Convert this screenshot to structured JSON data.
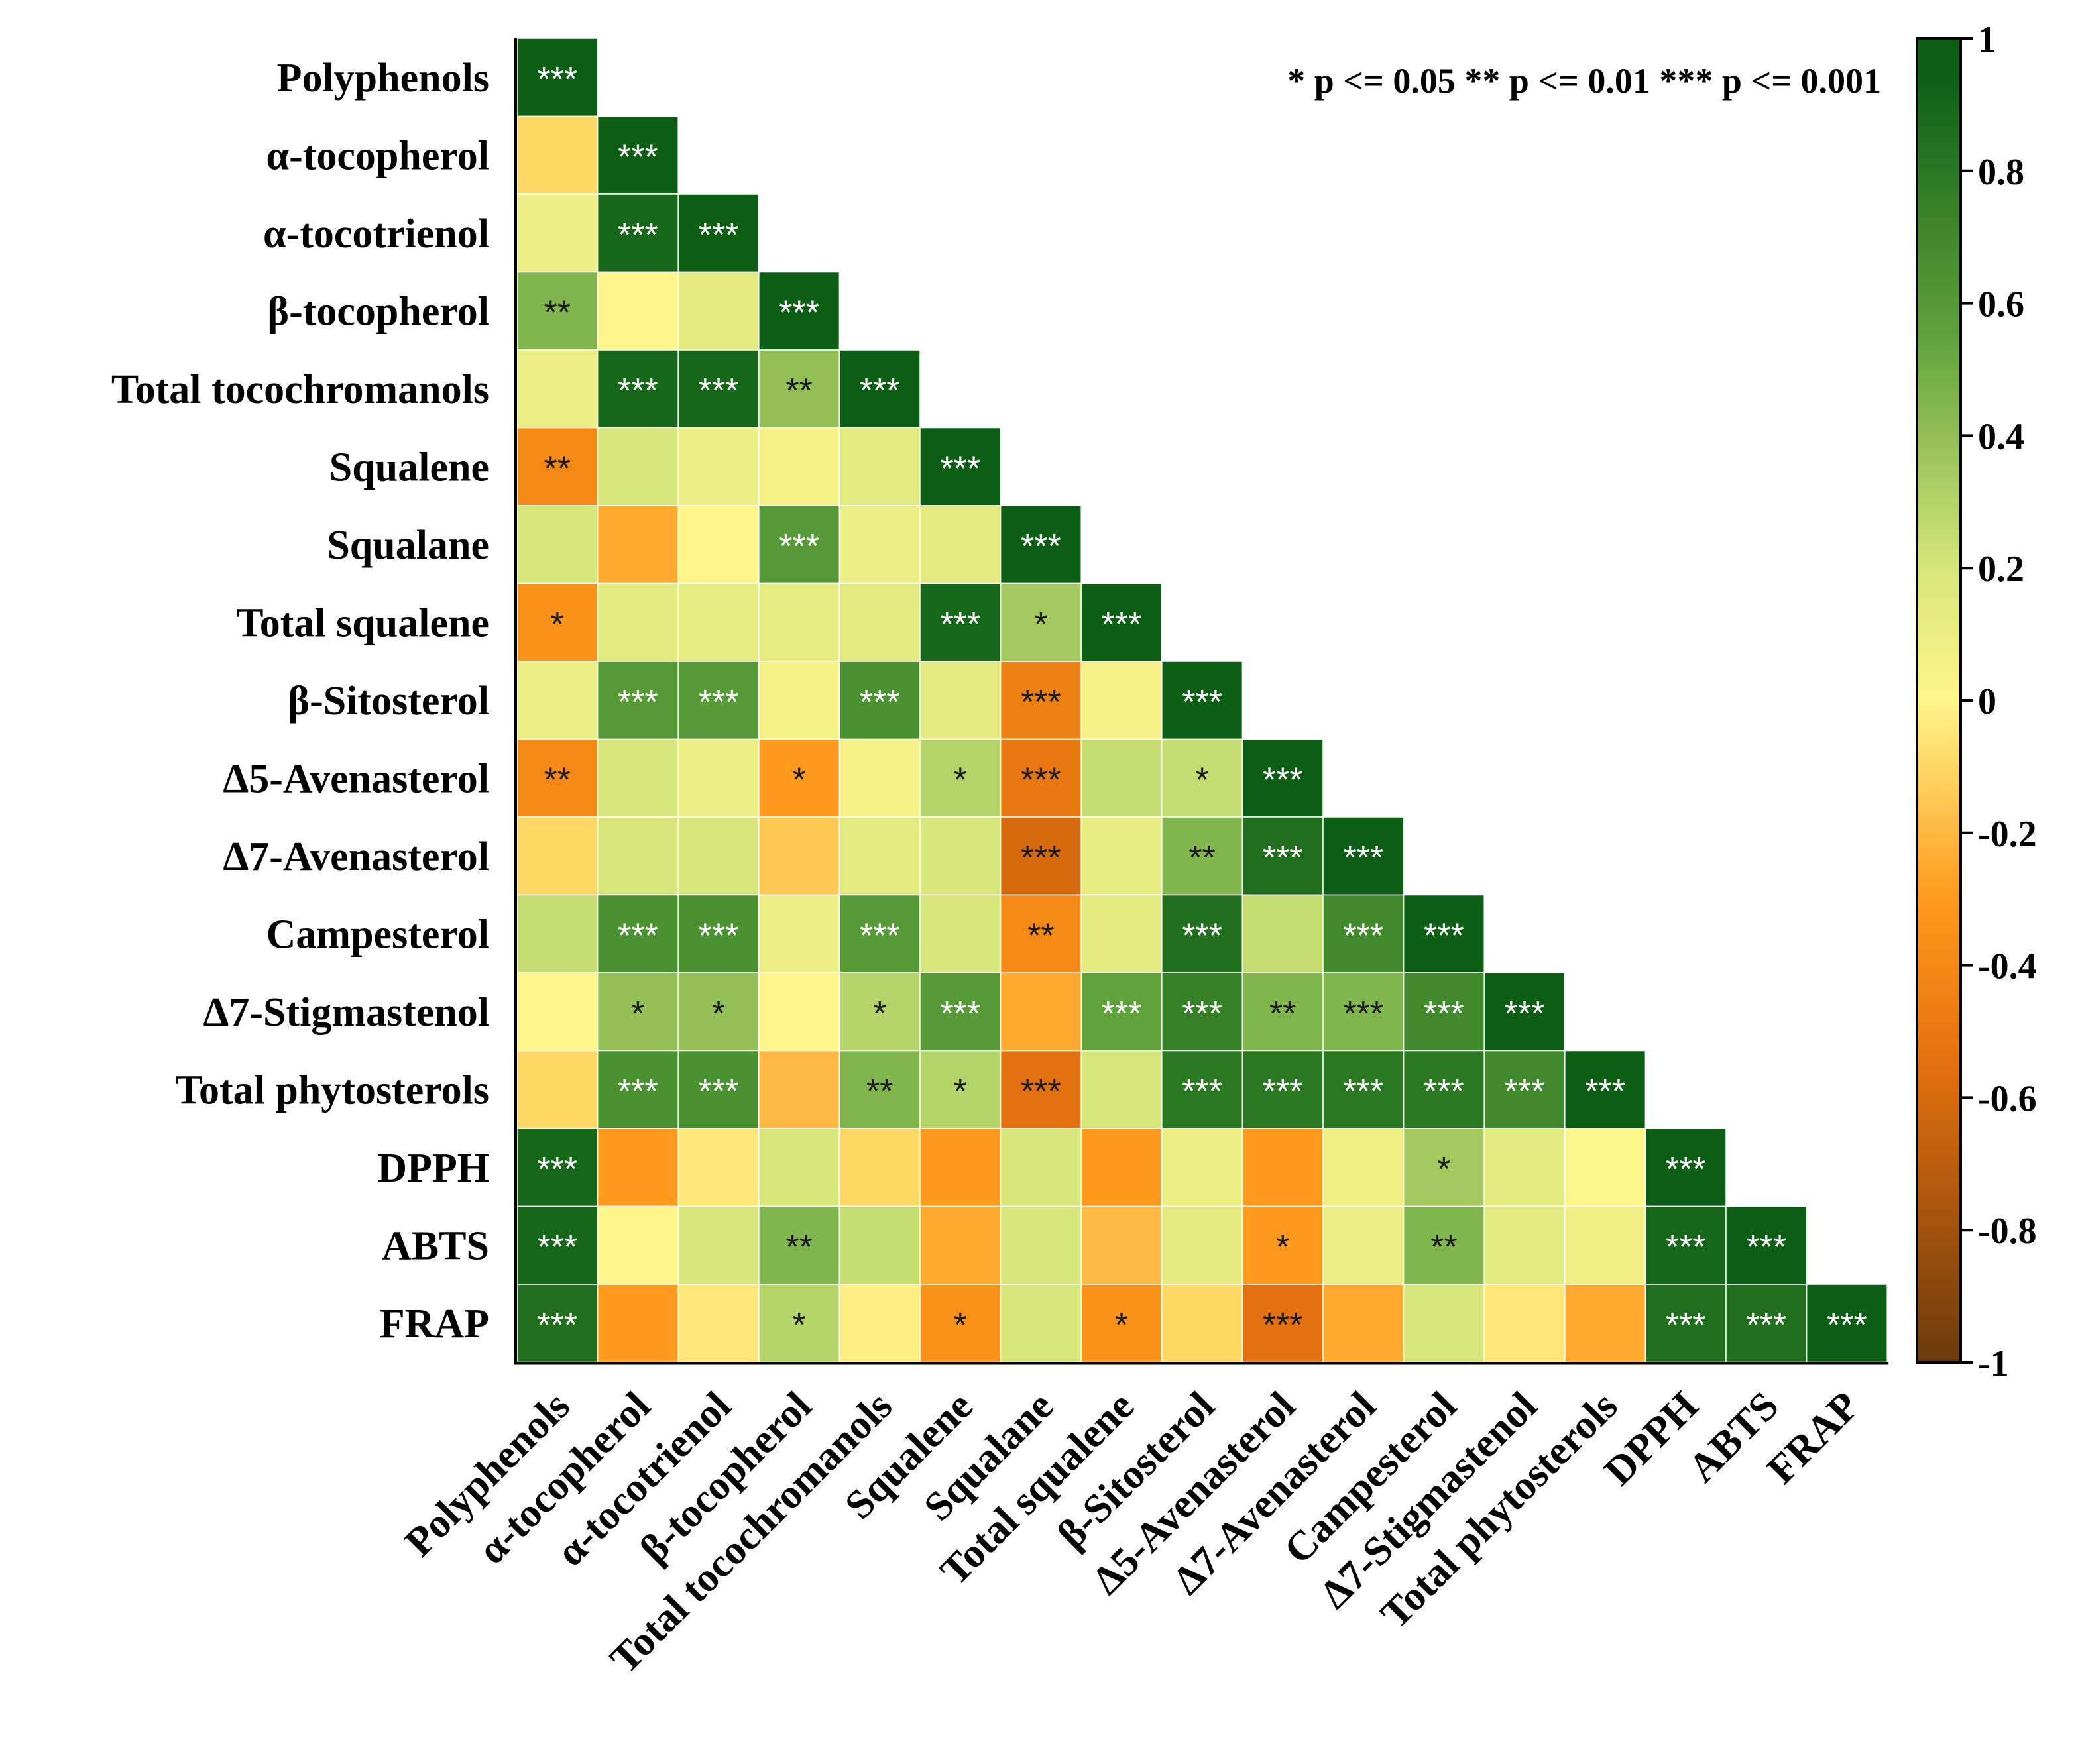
{
  "chart_data": {
    "type": "heatmap",
    "title": "",
    "variables": [
      "Polyphenols",
      "α-tocopherol",
      "α-tocotrienol",
      "β-tocopherol",
      "Total tocochromanols",
      "Squalene",
      "Squalane",
      "Total squalene",
      "β-Sitosterol",
      "Δ5-Avenasterol",
      "Δ7-Avenasterol",
      "Campesterol",
      "Δ7-Stigmastenol",
      "Total phytosterols",
      "DPPH",
      "ABTS",
      "FRAP"
    ],
    "matrix": [
      [
        1
      ],
      [
        -0.1,
        1
      ],
      [
        0.1,
        0.9,
        1
      ],
      [
        0.45,
        0.0,
        0.15,
        1
      ],
      [
        0.1,
        0.9,
        0.9,
        0.4,
        1
      ],
      [
        -0.4,
        0.2,
        0.1,
        0.05,
        0.15,
        1
      ],
      [
        0.2,
        -0.25,
        0.0,
        0.6,
        0.1,
        0.15,
        1
      ],
      [
        -0.35,
        0.15,
        0.12,
        0.12,
        0.15,
        0.9,
        0.35,
        1
      ],
      [
        0.1,
        0.6,
        0.6,
        0.05,
        0.65,
        0.15,
        -0.45,
        0.05,
        1
      ],
      [
        -0.4,
        0.2,
        0.1,
        -0.3,
        0.05,
        0.3,
        -0.5,
        0.25,
        0.25,
        1
      ],
      [
        -0.1,
        0.2,
        0.2,
        -0.15,
        0.15,
        0.2,
        -0.6,
        0.12,
        0.45,
        0.85,
        1
      ],
      [
        0.25,
        0.65,
        0.65,
        0.1,
        0.6,
        0.2,
        -0.4,
        0.15,
        0.85,
        0.25,
        0.7,
        1
      ],
      [
        0.0,
        0.4,
        0.4,
        0.0,
        0.3,
        0.6,
        -0.25,
        0.55,
        0.75,
        0.45,
        0.45,
        0.7,
        1
      ],
      [
        -0.1,
        0.65,
        0.65,
        -0.2,
        0.45,
        0.3,
        -0.55,
        0.2,
        0.8,
        0.8,
        0.8,
        0.8,
        0.7,
        1
      ],
      [
        0.9,
        -0.3,
        -0.05,
        0.2,
        -0.1,
        -0.3,
        0.2,
        -0.3,
        0.1,
        -0.3,
        0.08,
        0.35,
        0.15,
        0.02,
        1
      ],
      [
        0.9,
        0.0,
        0.2,
        0.45,
        0.25,
        -0.25,
        0.2,
        -0.2,
        0.15,
        -0.3,
        0.1,
        0.45,
        0.15,
        0.08,
        0.9,
        1
      ],
      [
        0.85,
        -0.3,
        -0.05,
        0.3,
        -0.02,
        -0.35,
        0.2,
        -0.35,
        -0.1,
        -0.55,
        -0.25,
        0.2,
        -0.05,
        -0.25,
        0.85,
        0.85,
        1
      ]
    ],
    "significance": [
      [
        "***"
      ],
      [
        "",
        "***"
      ],
      [
        "",
        "***",
        "***"
      ],
      [
        "**",
        "",
        "",
        "***"
      ],
      [
        "",
        "***",
        "***",
        "**",
        "***"
      ],
      [
        "**",
        "",
        "",
        "",
        "",
        "***"
      ],
      [
        "",
        "",
        "",
        "***",
        "",
        "",
        "***"
      ],
      [
        "*",
        "",
        "",
        "",
        "",
        "***",
        "*",
        "***"
      ],
      [
        "",
        "***",
        "***",
        "",
        "***",
        "",
        "***",
        "",
        "***"
      ],
      [
        "**",
        "",
        "",
        "*",
        "",
        "*",
        "***",
        "",
        "*",
        "***"
      ],
      [
        "",
        "",
        "",
        "",
        "",
        "",
        "***",
        "",
        "**",
        "***",
        "***"
      ],
      [
        "",
        "***",
        "***",
        "",
        "***",
        "",
        "**",
        "",
        "***",
        "",
        "***",
        "***"
      ],
      [
        "",
        "*",
        "*",
        "",
        "*",
        "***",
        "",
        "***",
        "***",
        "**",
        "***",
        "***",
        "***"
      ],
      [
        "",
        "***",
        "***",
        "",
        "**",
        "*",
        "***",
        "",
        "***",
        "***",
        "***",
        "***",
        "***",
        "***"
      ],
      [
        "***",
        "",
        "",
        "",
        "",
        "",
        "",
        "",
        "",
        "",
        "",
        "*",
        "",
        "",
        "***"
      ],
      [
        "***",
        "",
        "",
        "**",
        "",
        "",
        "",
        "",
        "",
        "*",
        "",
        "**",
        "",
        "",
        "***",
        "***"
      ],
      [
        "***",
        "",
        "",
        "*",
        "",
        "*",
        "",
        "*",
        "",
        "***",
        "",
        "",
        "",
        "",
        "***",
        "***",
        "***"
      ]
    ],
    "colorbar": {
      "range": [
        -1,
        1
      ],
      "ticks": [
        "1",
        "0.8",
        "0.6",
        "0.4",
        "0.2",
        "0",
        "-0.2",
        "-0.4",
        "-0.6",
        "-0.8",
        "-1"
      ],
      "colors": [
        "#6b3a0c",
        "#e3700e",
        "#ff9a1c",
        "#fff58a",
        "#d6e67a",
        "#5fa23b",
        "#0c5e14"
      ]
    },
    "legend_note": "* p <= 0.05  ** p <= 0.01  *** p <= 0.001"
  }
}
